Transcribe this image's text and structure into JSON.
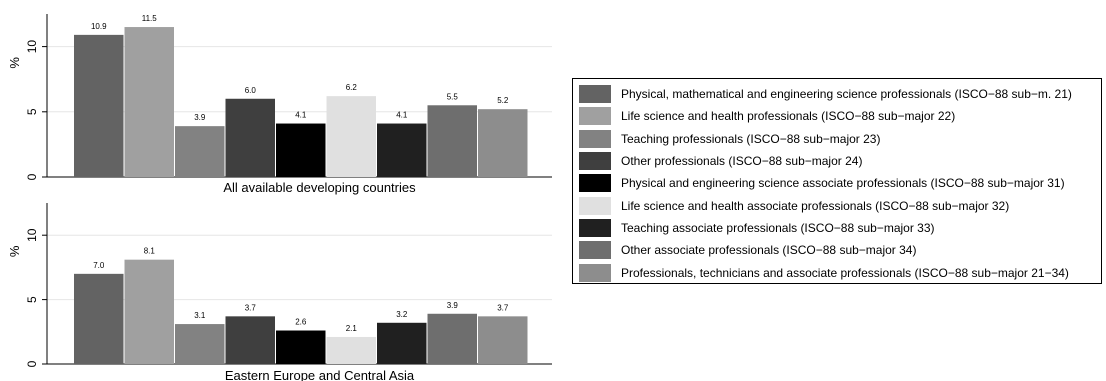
{
  "chart_data": {
    "type": "bar",
    "ylabel": "%",
    "ylim": [
      0,
      12.5
    ],
    "yticks": [
      "0",
      "5",
      "10"
    ],
    "legend_position": "right",
    "grid": true,
    "series": [
      {
        "name": "Physical, mathematical and engineering science professionals (ISCO−88 sub−m. 21)",
        "color": "#636363"
      },
      {
        "name": "Life science and health professionals (ISCO−88 sub−major 22)",
        "color": "#a0a0a0"
      },
      {
        "name": "Teaching professionals (ISCO−88 sub−major 23)",
        "color": "#828282"
      },
      {
        "name": "Other professionals (ISCO−88 sub−major 24)",
        "color": "#3f3f3f"
      },
      {
        "name": "Physical and engineering science associate professionals (ISCO−88 sub−major 31)",
        "color": "#000000"
      },
      {
        "name": "Life science and health associate professionals (ISCO−88 sub−major 32)",
        "color": "#e0e0e0"
      },
      {
        "name": "Teaching associate professionals (ISCO−88 sub−major 33)",
        "color": "#202020"
      },
      {
        "name": "Other associate professionals (ISCO−88 sub−major 34)",
        "color": "#6e6e6e"
      },
      {
        "name": "Professionals, technicians and associate professionals (ISCO−88 sub−major 21−34)",
        "color": "#8d8d8d"
      }
    ],
    "panels": [
      {
        "title": "All available developing countries",
        "values": [
          10.9,
          11.5,
          3.9,
          6.0,
          4.1,
          6.2,
          4.1,
          5.5,
          5.2
        ],
        "labels": [
          "10.9",
          "11.5",
          "3.9",
          "6.0",
          "4.1",
          "6.2",
          "4.1",
          "5.5",
          "5.2"
        ]
      },
      {
        "title": "Eastern Europe and Central Asia",
        "values": [
          7.0,
          8.1,
          3.1,
          3.7,
          2.6,
          2.1,
          3.2,
          3.9,
          3.7
        ],
        "labels": [
          "7.0",
          "8.1",
          "3.1",
          "3.7",
          "2.6",
          "2.1",
          "3.2",
          "3.9",
          "3.7"
        ]
      }
    ]
  }
}
